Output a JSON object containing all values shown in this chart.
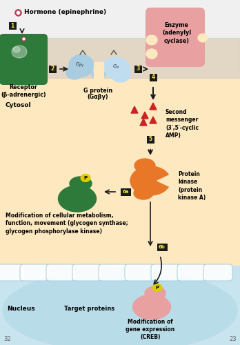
{
  "bg_color": "#f0f0f0",
  "top_bg_color": "#f0f0f0",
  "membrane_color": "#c8c8c8",
  "cytosol_color": "#fde8c0",
  "nucleus_color": "#b8dce8",
  "nucleus_ellipse_color": "#a8d0e0",
  "receptor_color": "#2d7a3a",
  "receptor_color2": "#3a9a4a",
  "gprotein_color": "#a8cce0",
  "enzyme_color": "#e8a0a0",
  "pk_color": "#e87828",
  "green_blob_color": "#2d7a3a",
  "pink_blob_color": "#e8a0a0",
  "step_label_bg": "#1a1a1a",
  "step_label_fg": "#ffee44",
  "arrow_color": "#1a1a1a",
  "red_triangle_color": "#cc2222",
  "hormone_dot_color": "#cc4466",
  "p_circle_color": "#ddcc00",
  "title": "Hormone (epinephrine)",
  "label_receptor": "Receptor\n(β-adrenergic)",
  "label_cytosol": "Cytosol",
  "label_gprotein_line1": "G protein",
  "label_gprotein_line2": "(Gαβγ)",
  "label_enzyme": "Enzyme\n(adenylyl\ncyclase)",
  "label_second_messenger": "Second\nmessenger\n(3′,5′-cyclic\nAMP)",
  "label_pk": "Protein\nkinase\n(protein\nkinase A)",
  "label_modification": "Modification of cellular metabolism,\nfunction, movement (glycogen synthase;\nglycogen phosphorylase kinase)",
  "label_nucleus": "Nucleus",
  "label_target": "Target proteins",
  "label_gene_mod": "Modification of\ngene expression\n(CREB)",
  "label_page_left": "32",
  "label_page_right": "23"
}
